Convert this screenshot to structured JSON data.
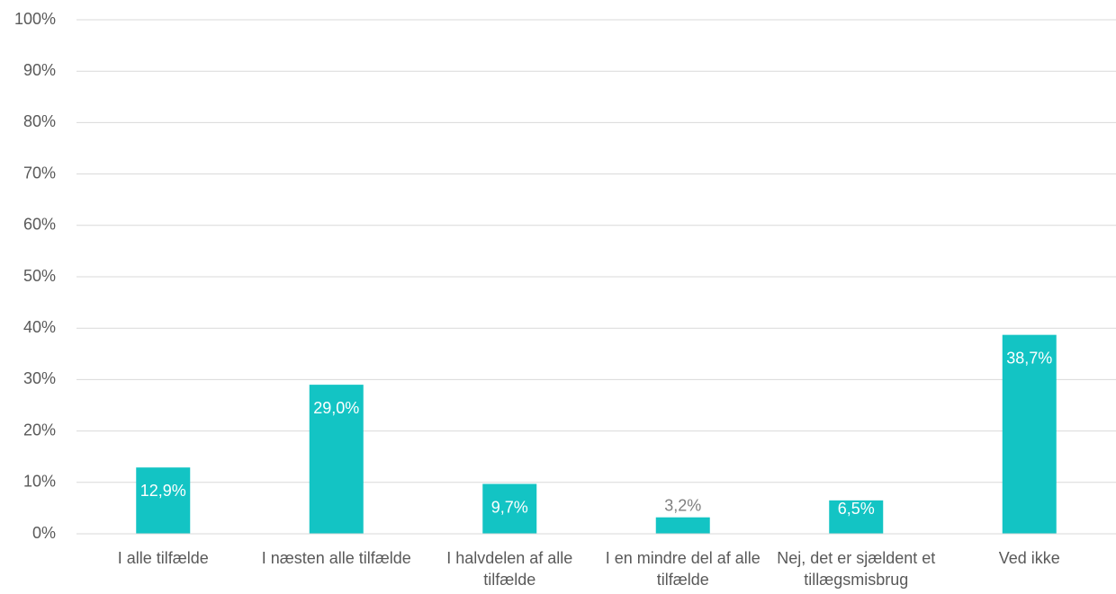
{
  "chart_data": {
    "type": "bar",
    "categories": [
      "I alle tilfælde",
      "I næsten alle tilfælde",
      "I halvdelen af alle tilfælde",
      "I en mindre del af alle tilfælde",
      "Nej, det er sjældent et tillægsmisbrug",
      "Ved ikke"
    ],
    "values": [
      12.9,
      29.0,
      9.7,
      3.2,
      6.5,
      38.7
    ],
    "value_labels": [
      "12,9%",
      "29,0%",
      "9,7%",
      "3,2%",
      "6,5%",
      "38,7%"
    ],
    "color": "#13c4c4",
    "ylim": [
      0,
      100
    ],
    "yticks": [
      {
        "value": 0,
        "label": "0%"
      },
      {
        "value": 10,
        "label": "10%"
      },
      {
        "value": 20,
        "label": "20%"
      },
      {
        "value": 30,
        "label": "30%"
      },
      {
        "value": 40,
        "label": "40%"
      },
      {
        "value": 50,
        "label": "50%"
      },
      {
        "value": 60,
        "label": "60%"
      },
      {
        "value": 70,
        "label": "70%"
      },
      {
        "value": 80,
        "label": "80%"
      },
      {
        "value": 90,
        "label": "90%"
      },
      {
        "value": 100,
        "label": "100%"
      }
    ],
    "grid": true
  }
}
